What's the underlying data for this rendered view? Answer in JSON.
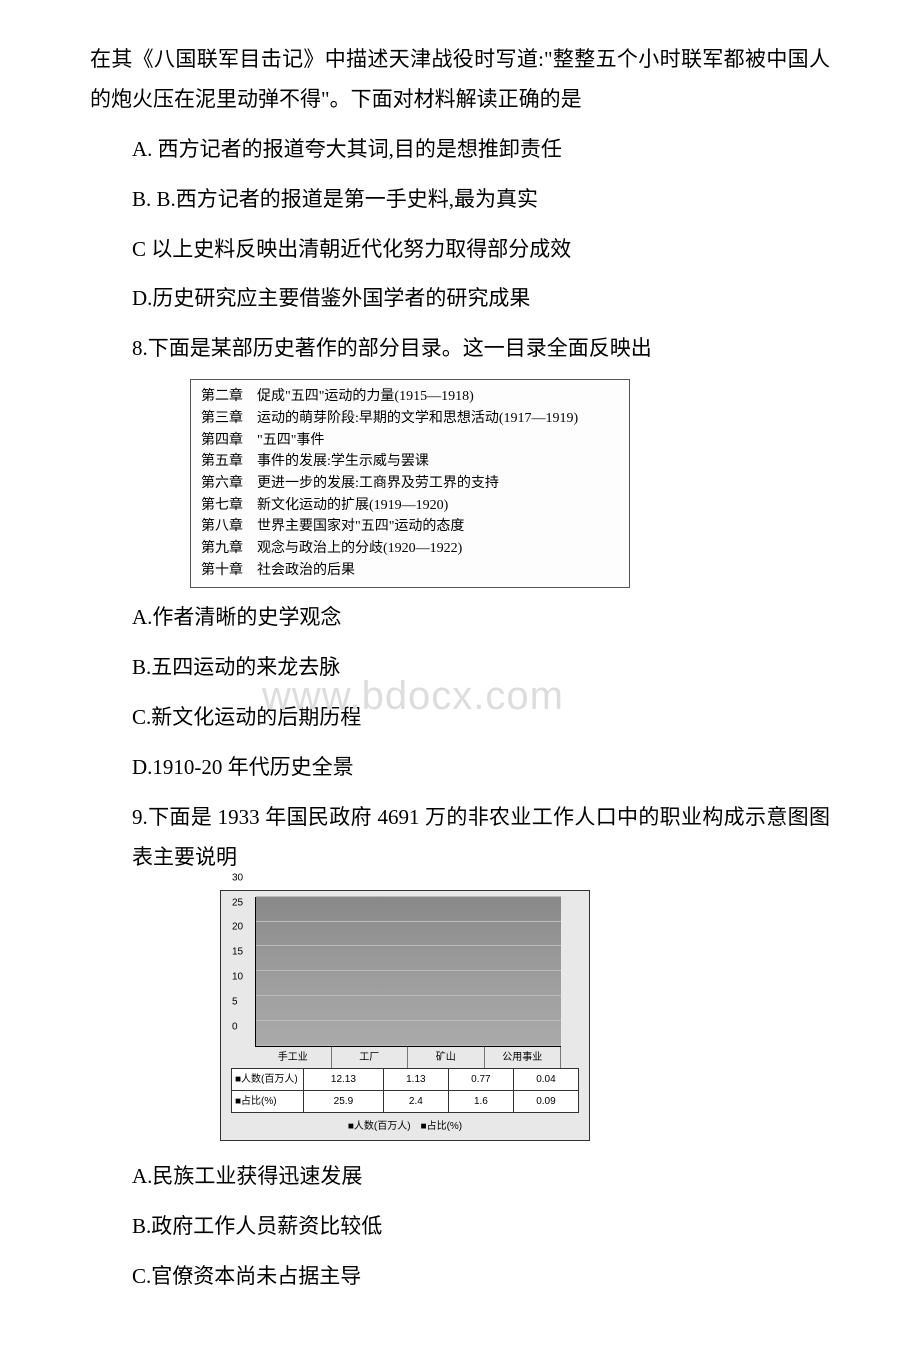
{
  "q7": {
    "intro": "在其《八国联军目击记》中描述天津战役时写道:\"整整五个小时联军都被中国人的炮火压在泥里动弹不得\"。下面对材料解读正确的是",
    "A": "A. 西方记者的报道夸大其词,目的是想推卸责任",
    "B": "B. B.西方记者的报道是第一手史料,最为真实",
    "C": "C 以上史料反映出清朝近代化努力取得部分成效",
    "D": "D.历史研究应主要借鉴外国学者的研究成果"
  },
  "q8": {
    "intro": "8.下面是某部历史著作的部分目录。这一目录全面反映出",
    "toc": [
      "第二章　促成\"五四\"运动的力量(1915—1918)",
      "第三章　运动的萌芽阶段:早期的文学和思想活动(1917—1919)",
      "第四章　\"五四\"事件",
      "第五章　事件的发展:学生示威与罢课",
      "第六章　更进一步的发展:工商界及劳工界的支持",
      "第七章　新文化运动的扩展(1919—1920)",
      "第八章　世界主要国家对\"五四\"运动的态度",
      "第九章　观念与政治上的分歧(1920—1922)",
      "第十章　社会政治的后果"
    ],
    "A": "A.作者清晰的史学观念",
    "B": "B.五四运动的来龙去脉",
    "C": "C.新文化运动的后期历程",
    "D": "D.1910-20 年代历史全景",
    "watermark": "www.bdocx.com"
  },
  "q9": {
    "intro": "9.下面是 1933 年国民政府 4691 万的非农业工作人口中的职业构成示意图图表主要说明",
    "chart": {
      "type": "bar",
      "yticks": [
        0,
        5,
        10,
        15,
        20,
        25,
        30
      ],
      "ylim": [
        0,
        30
      ],
      "categories": [
        "手工业",
        "工厂",
        "矿山",
        "公用事业"
      ],
      "series": [
        {
          "name": "人数(百万人)",
          "values": [
            12.13,
            1.13,
            0.77,
            0.04
          ],
          "color": "#1a1a1a"
        },
        {
          "name": "占比(%)",
          "values": [
            25.9,
            2.4,
            1.6,
            0.09
          ],
          "color": "#333333"
        }
      ],
      "row_headers": [
        "■人数(百万人)",
        "■占比(%)"
      ],
      "legend_text": "■人数(百万人)　■占比(%)",
      "background": "#e8e8e8",
      "grid_color": "#bbbbbb"
    },
    "A": "A.民族工业获得迅速发展",
    "B": "B.政府工作人员薪资比较低",
    "C": "C.官僚资本尚未占据主导"
  }
}
